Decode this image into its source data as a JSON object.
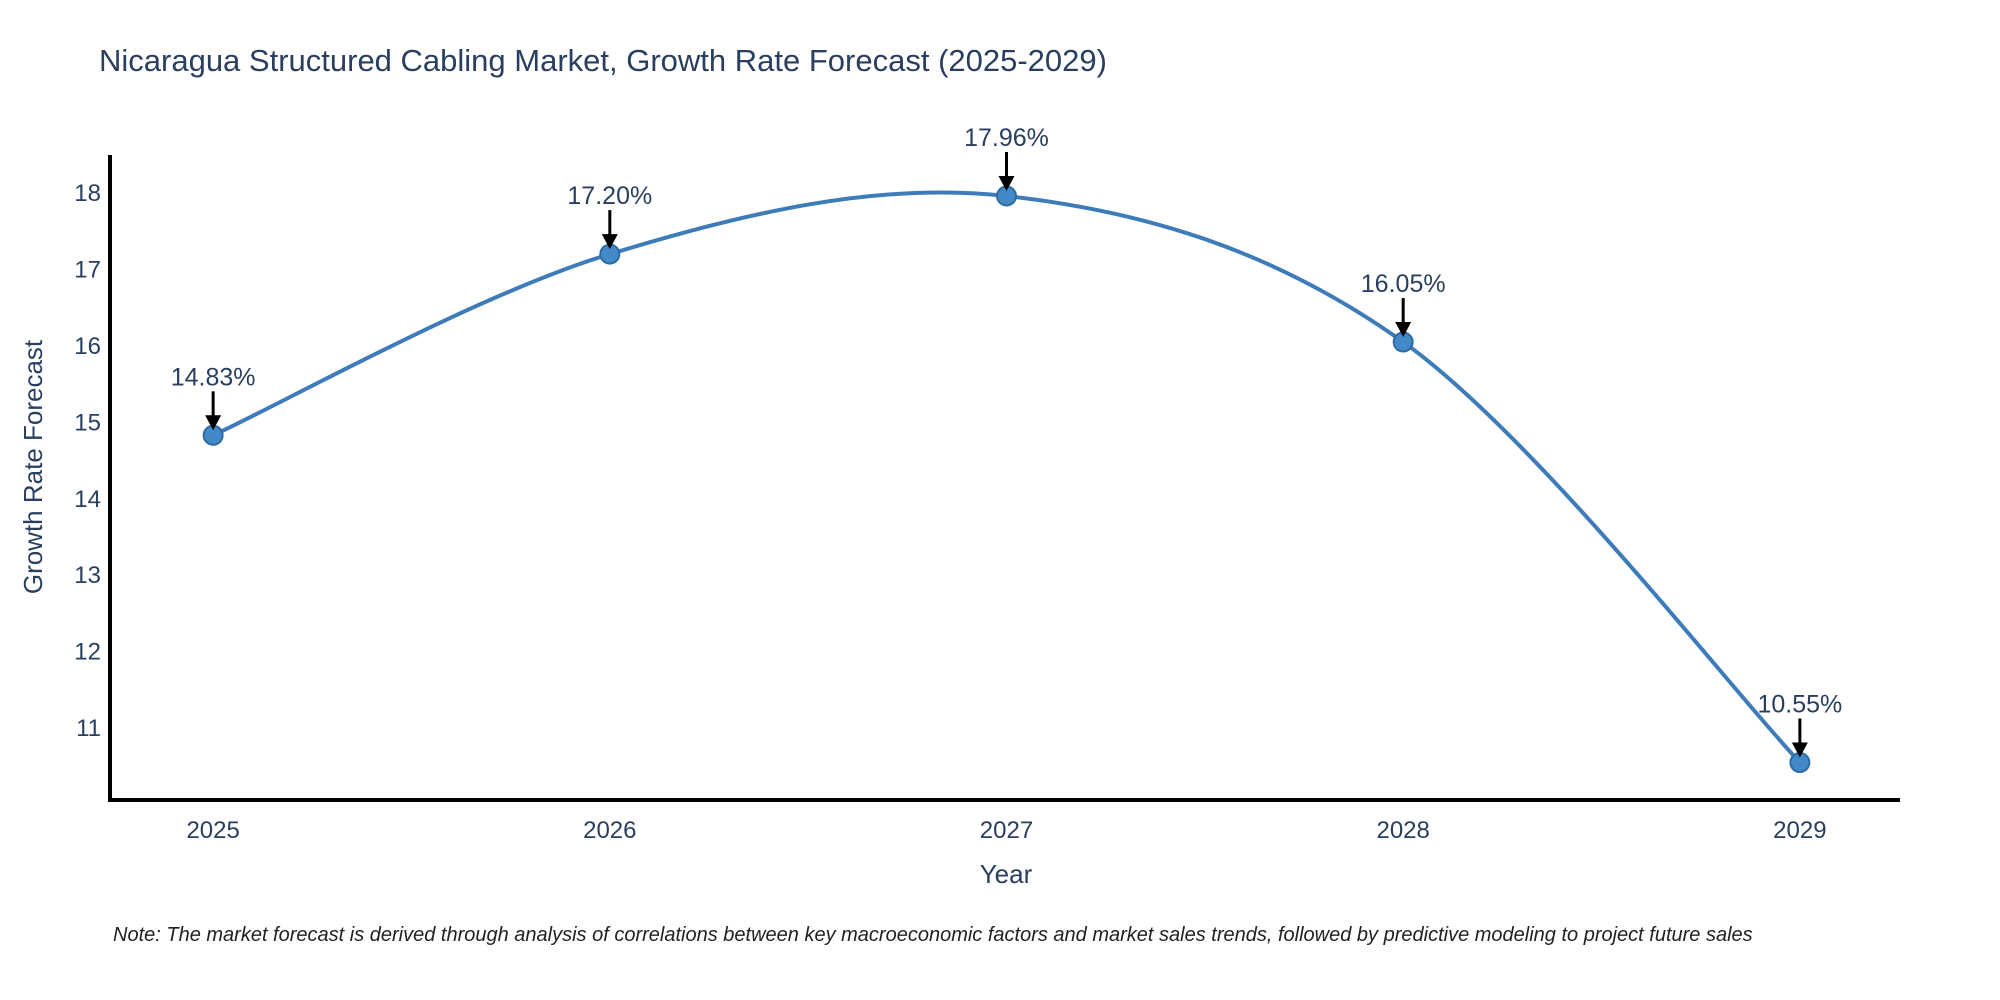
{
  "title": "Nicaragua Structured Cabling Market, Growth Rate Forecast (2025-2029)",
  "note": "Note: The market forecast is derived through analysis of correlations between key macroeconomic factors and market sales trends, followed by predictive modeling to project future sales",
  "chart_data": {
    "type": "line",
    "title": "Nicaragua Structured Cabling Market, Growth Rate Forecast (2025-2029)",
    "xlabel": "Year",
    "ylabel": "Growth Rate Forecast",
    "x": [
      2025,
      2026,
      2027,
      2028,
      2029
    ],
    "y": [
      14.83,
      17.2,
      17.96,
      16.05,
      10.55
    ],
    "point_labels": [
      "14.83%",
      "17.20%",
      "17.96%",
      "16.05%",
      "10.55%"
    ],
    "series_name": "Growth Rate Forecast",
    "line_shape": "spline",
    "markers": true,
    "grid": false,
    "legend_position": "none",
    "xticks": [
      "2025",
      "2026",
      "2027",
      "2028",
      "2029"
    ],
    "yticks": [
      11,
      12,
      13,
      14,
      15,
      16,
      17,
      18
    ],
    "xlim": [
      2024.74,
      2029.26
    ],
    "ylim": [
      10.06,
      18.47
    ],
    "colors": {
      "line": "#3d7cb8",
      "marker_fill": "#4289c7",
      "marker_edge": "#2f6ba3",
      "axis_line": "#000000",
      "chart_text": "#2a3f5f",
      "annotation_arrow": "#000000",
      "note_text": "#222222"
    }
  }
}
